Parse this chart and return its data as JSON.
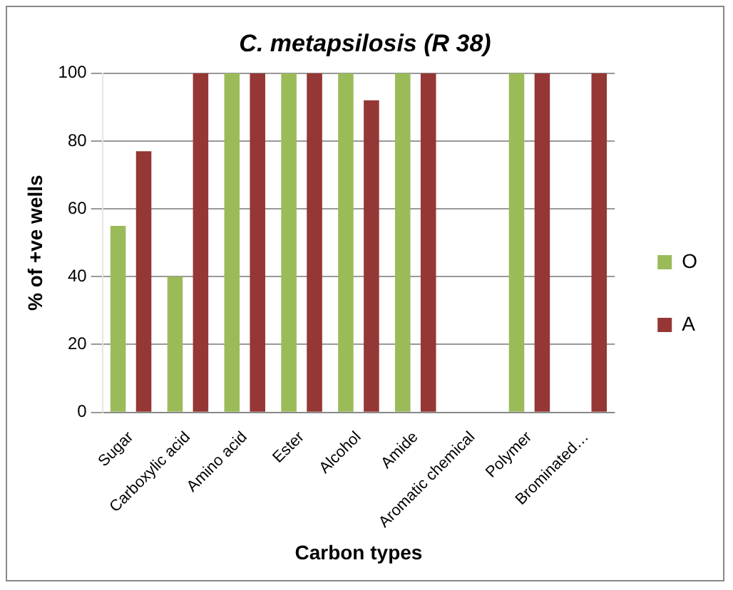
{
  "chart_data": {
    "type": "bar",
    "title": "C. metapsilosis (R 38)",
    "xlabel": "Carbon types",
    "ylabel": "% of +ve wells",
    "categories": [
      "Sugar",
      "Carboxylic acid",
      "Amino acid",
      "Ester",
      "Alcohol",
      "Amide",
      "Aromatic chemical",
      "Polymer",
      "Brominated…"
    ],
    "series": [
      {
        "name": "O",
        "color": "#9bbb59",
        "values": [
          55,
          40,
          100,
          100,
          100,
          100,
          0,
          100,
          0
        ]
      },
      {
        "name": "A",
        "color": "#953735",
        "values": [
          77,
          100,
          100,
          100,
          92,
          100,
          0,
          100,
          100
        ]
      }
    ],
    "ylim": [
      0,
      100
    ],
    "yticks": [
      0,
      20,
      40,
      60,
      80,
      100
    ],
    "grid": "y",
    "legend": "right"
  }
}
